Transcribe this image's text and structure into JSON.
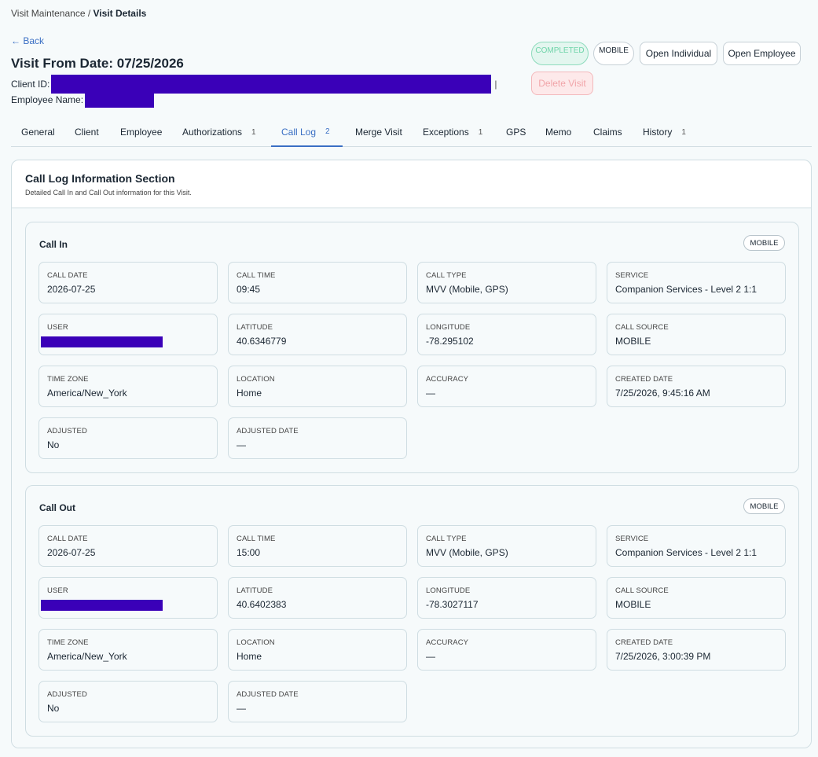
{
  "breadcrumb": {
    "parent": "Visit Maintenance",
    "separator": " / ",
    "current": "Visit Details"
  },
  "back_label": "← Back",
  "title": "Visit From Date: 07/25/2026",
  "client_label": "Client ID:",
  "employee_label": "Employee Name:",
  "client_pipe": "|",
  "badges": {
    "status": "COMPLETED",
    "source": "MOBILE"
  },
  "buttons": {
    "open_individual": "Open Individual",
    "open_employee": "Open Employee",
    "delete": "Delete Visit"
  },
  "tabs": [
    {
      "label": "General",
      "count": ""
    },
    {
      "label": "Client",
      "count": ""
    },
    {
      "label": "Employee",
      "count": ""
    },
    {
      "label": "Authorizations",
      "count": "1"
    },
    {
      "label": "Call Log",
      "count": "2"
    },
    {
      "label": "Merge Visit",
      "count": ""
    },
    {
      "label": "Exceptions",
      "count": "1"
    },
    {
      "label": "GPS",
      "count": ""
    },
    {
      "label": "Memo",
      "count": ""
    },
    {
      "label": "Claims",
      "count": ""
    },
    {
      "label": "History",
      "count": "1"
    }
  ],
  "active_tab": "Call Log",
  "section": {
    "title": "Call Log Information Section",
    "subtitle": "Detailed Call In and Call Out information for this Visit."
  },
  "labels": {
    "call_date": "CALL DATE",
    "call_time": "CALL TIME",
    "call_type": "CALL TYPE",
    "service": "SERVICE",
    "user": "USER",
    "latitude": "LATITUDE",
    "longitude": "LONGITUDE",
    "call_source": "CALL SOURCE",
    "time_zone": "TIME ZONE",
    "location": "LOCATION",
    "accuracy": "ACCURACY",
    "created_date": "CREATED DATE",
    "adjusted": "ADJUSTED",
    "adjusted_date": "ADJUSTED DATE"
  },
  "call_in": {
    "title": "Call In",
    "badge": "MOBILE",
    "call_date": "2026-07-25",
    "call_time": "09:45",
    "call_type": "MVV (Mobile, GPS)",
    "service": "Companion Services - Level 2 1:1",
    "latitude": "40.6346779",
    "longitude": "-78.295102",
    "call_source": "MOBILE",
    "time_zone": "America/New_York",
    "location": "Home",
    "accuracy": "—",
    "created_date": "7/25/2026, 9:45:16 AM",
    "adjusted": "No",
    "adjusted_date": "—"
  },
  "call_out": {
    "title": "Call Out",
    "badge": "MOBILE",
    "call_date": "2026-07-25",
    "call_time": "15:00",
    "call_type": "MVV (Mobile, GPS)",
    "service": "Companion Services - Level 2 1:1",
    "latitude": "40.6402383",
    "longitude": "-78.3027117",
    "call_source": "MOBILE",
    "time_zone": "America/New_York",
    "location": "Home",
    "accuracy": "—",
    "created_date": "7/25/2026, 3:00:39 PM",
    "adjusted": "No",
    "adjusted_date": "—"
  }
}
